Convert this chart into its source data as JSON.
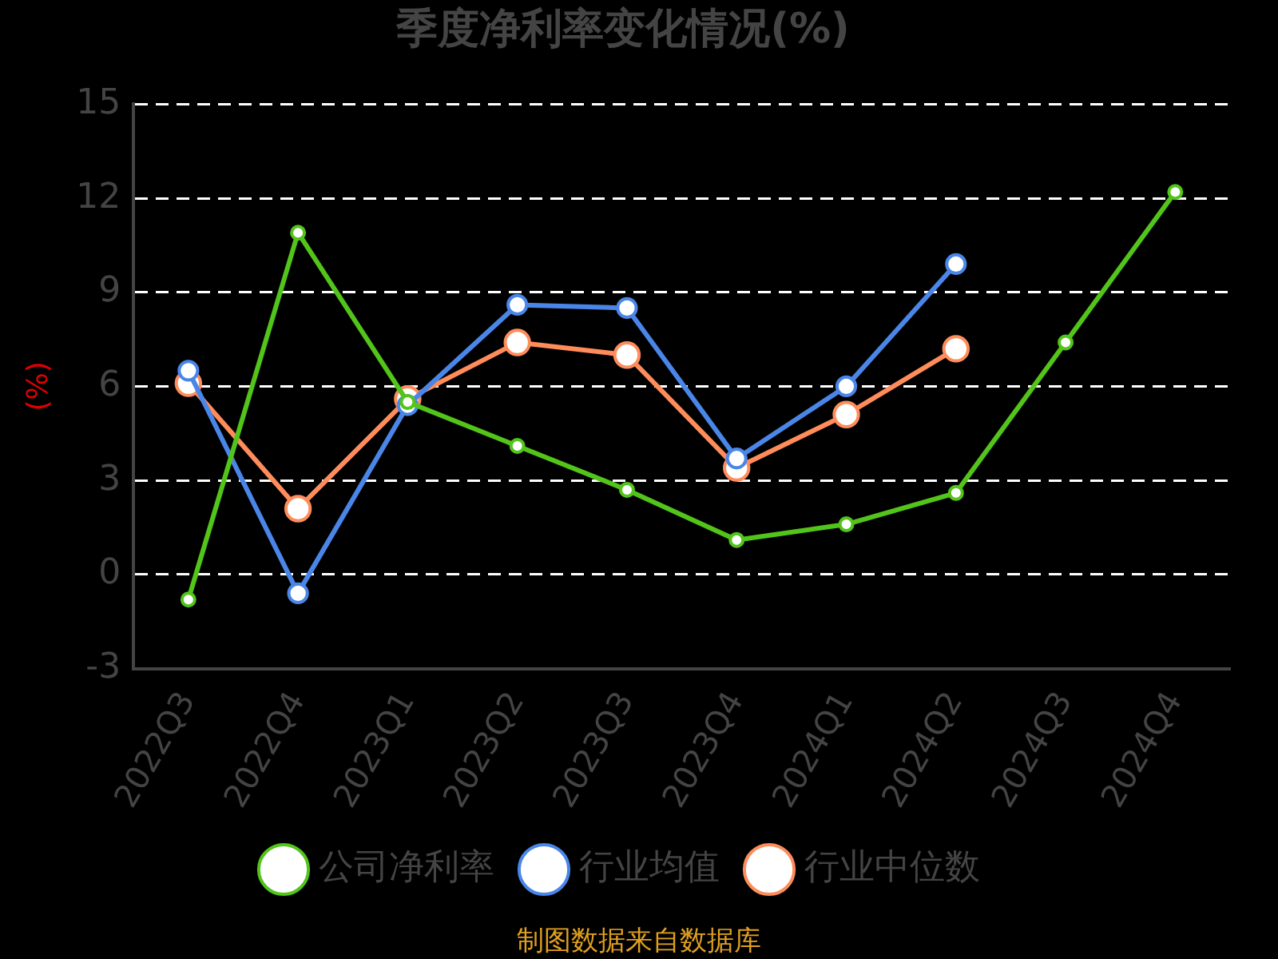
{
  "chart_data": {
    "type": "line",
    "title": "季度净利率变化情况(%)",
    "ylabel": "(%)",
    "categories": [
      "2022Q3",
      "2022Q4",
      "2023Q1",
      "2023Q2",
      "2023Q3",
      "2023Q4",
      "2024Q1",
      "2024Q2",
      "2024Q3",
      "2024Q4"
    ],
    "series": [
      {
        "name": "公司净利率",
        "color": "#52c41a",
        "values": [
          -0.8,
          10.9,
          5.5,
          4.1,
          2.7,
          1.1,
          1.6,
          2.6,
          7.4,
          12.2
        ]
      },
      {
        "name": "行业均值",
        "color": "#4a86e8",
        "values": [
          6.5,
          -0.6,
          5.4,
          8.6,
          8.5,
          3.7,
          6.0,
          9.9,
          null,
          null
        ]
      },
      {
        "name": "行业中位数",
        "color": "#ff8c5a",
        "values": [
          6.1,
          2.1,
          5.6,
          7.4,
          7.0,
          3.4,
          5.1,
          7.2,
          null,
          null
        ]
      }
    ],
    "ylim": [
      -3,
      15
    ],
    "yticks": [
      -3,
      0,
      3,
      6,
      9,
      12,
      15
    ],
    "grid": "y",
    "legend": "bottom",
    "marker": "circle",
    "line_style": "solid",
    "annotations": [
      "制图数据来自数据库"
    ]
  }
}
